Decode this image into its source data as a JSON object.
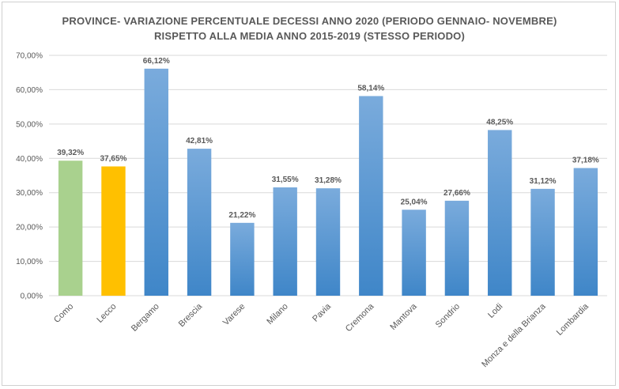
{
  "chart_data": {
    "type": "bar",
    "title_line1": "PROVINCE- VARIAZIONE PERCENTUALE DECESSI  ANNO 2020 (PERIODO GENNAIO- NOVEMBRE)",
    "title_line2": "RISPETTO ALLA MEDIA ANNO  2015-2019 (STESSO PERIODO)",
    "categories": [
      "Como",
      "Lecco",
      "Bergamo",
      "Brescia",
      "Varese",
      "Milano",
      "Pavia",
      "Cremona",
      "Mantova",
      "Sondrio",
      "Lodi",
      "Monza e della Brianza",
      "Lombardia"
    ],
    "values": [
      39.32,
      37.65,
      66.12,
      42.81,
      21.22,
      31.55,
      31.28,
      58.14,
      25.04,
      27.66,
      48.25,
      31.12,
      37.18
    ],
    "value_labels": [
      "39,32%",
      "37,65%",
      "66,12%",
      "42,81%",
      "21,22%",
      "31,55%",
      "31,28%",
      "58,14%",
      "25,04%",
      "27,66%",
      "48,25%",
      "31,12%",
      "37,18%"
    ],
    "yticks": [
      0,
      10,
      20,
      30,
      40,
      50,
      60,
      70
    ],
    "ytick_labels": [
      "0,00%",
      "10,00%",
      "20,00%",
      "30,00%",
      "40,00%",
      "50,00%",
      "60,00%",
      "70,00%"
    ],
    "ylim": [
      0,
      70
    ],
    "xlabel": "",
    "ylabel": "",
    "grid": true,
    "colors": {
      "default_top": "#7aabdc",
      "default_bottom": "#3f86c8",
      "Como": "#a9d18e",
      "Lecco": "#ffc000",
      "gridline": "#d9d9d9",
      "text": "#595959"
    }
  }
}
